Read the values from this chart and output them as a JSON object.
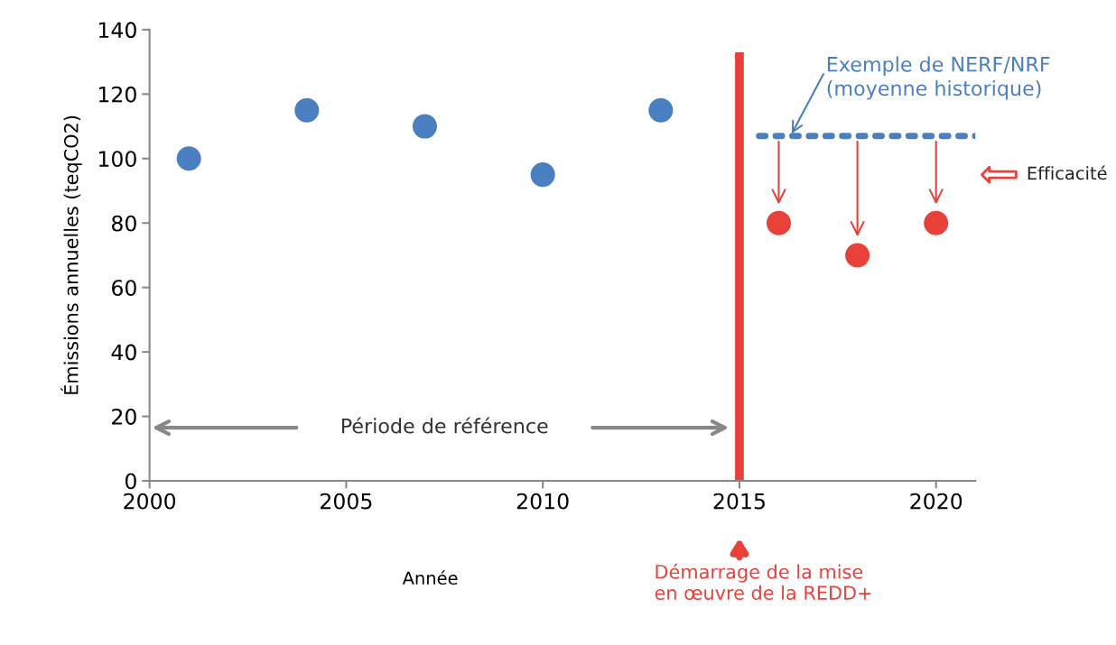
{
  "chart_data": {
    "type": "scatter",
    "xlabel": "Année",
    "ylabel": "Émissions annuelles (teqCO2)",
    "xlim": [
      2000,
      2021
    ],
    "xticks": [
      2000,
      2005,
      2010,
      2015,
      2020
    ],
    "ylim": [
      0,
      140
    ],
    "yticks": [
      0,
      20,
      40,
      60,
      80,
      100,
      120,
      140
    ],
    "grid": false,
    "series": [
      {
        "marker": "circle",
        "color": "#4a7fc1",
        "x": [
          2001,
          2004,
          2007,
          2010,
          2013
        ],
        "values": [
          100,
          115,
          110,
          95,
          115
        ]
      },
      {
        "marker": "circle",
        "color": "#e8413a",
        "x": [
          2016,
          2018,
          2020
        ],
        "values": [
          80,
          70,
          80
        ]
      },
      {
        "type": "line",
        "marker": "none",
        "color": "#4a7fc1",
        "line_style": "dotted",
        "x": [
          2015.5,
          2021
        ],
        "values": [
          107,
          107
        ]
      }
    ],
    "ref_lines": [
      {
        "axis": "x",
        "value": 2015,
        "label": "Démarrage de la mise\nen œuvre de la REDD+",
        "color": "#e8413a"
      }
    ],
    "annotations": [
      {
        "text": "Exemple de NERF/NRF\n(moyenne historique)",
        "x": 2016.3,
        "y": 107
      },
      "Période de référence",
      "Efficacité"
    ]
  }
}
